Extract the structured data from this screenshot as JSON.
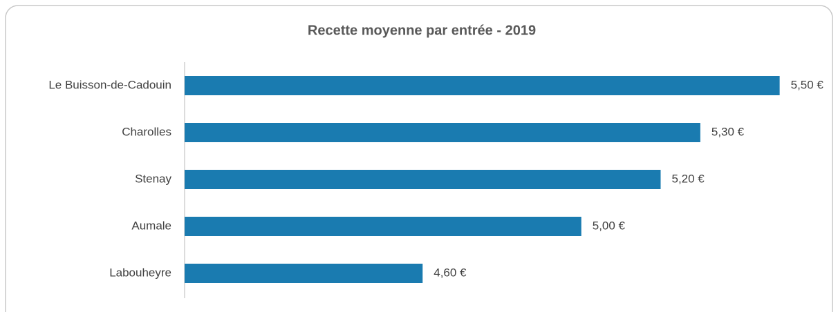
{
  "chart_data": {
    "type": "bar",
    "orientation": "horizontal",
    "title": "Recette moyenne par entrée - 2019",
    "categories": [
      "Le Buisson-de-Cadouin",
      "Charolles",
      "Stenay",
      "Aumale",
      "Labouheyre"
    ],
    "values": [
      5.5,
      5.3,
      5.2,
      5.0,
      4.6
    ],
    "value_labels": [
      "5,50 €",
      "5,30 €",
      "5,20 €",
      "5,00 €",
      "4,60 €"
    ],
    "color": "#1a7bb0",
    "xlim": [
      4,
      5.6
    ]
  }
}
